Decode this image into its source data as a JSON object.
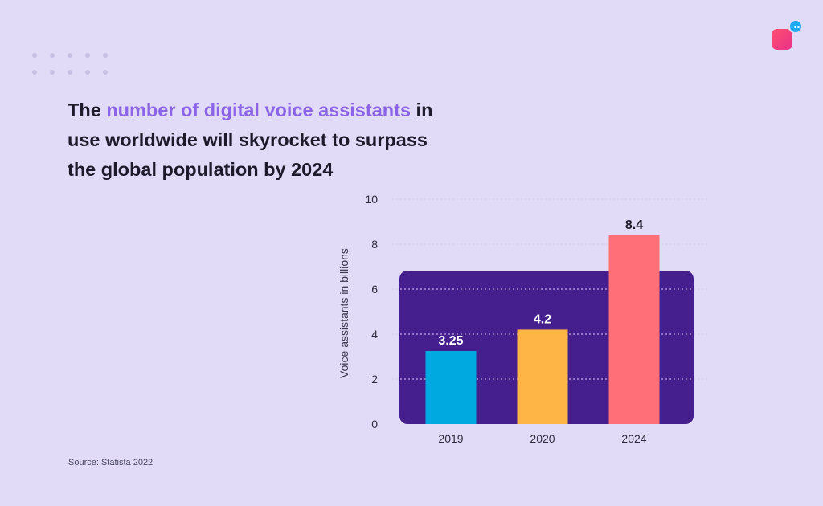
{
  "headline": {
    "part1": "The ",
    "highlight": "number of digital voice assistants",
    "part2": " in use worldwide will skyrocket to surpass the global population by 2024"
  },
  "source": "Source: Statista 2022",
  "colors": {
    "background": "#e2dbf7",
    "panel": "#451f8e",
    "highlight_text": "#8a63e6",
    "bar_2019": "#00a9e0",
    "bar_2020": "#ffb545",
    "bar_2024": "#ff6f77"
  },
  "chart_data": {
    "type": "bar",
    "categories": [
      "2019",
      "2020",
      "2024"
    ],
    "values": [
      3.25,
      4.2,
      8.4
    ],
    "data_labels": [
      "3.25",
      "4.2",
      "8.4"
    ],
    "bar_colors": [
      "#00a9e0",
      "#ffb545",
      "#ff6f77"
    ],
    "ylabel": "Voice assistants in billions",
    "xlabel": "",
    "ylim": [
      0,
      10
    ],
    "yticks": [
      0,
      2,
      4,
      6,
      8,
      10
    ],
    "grid": true
  }
}
